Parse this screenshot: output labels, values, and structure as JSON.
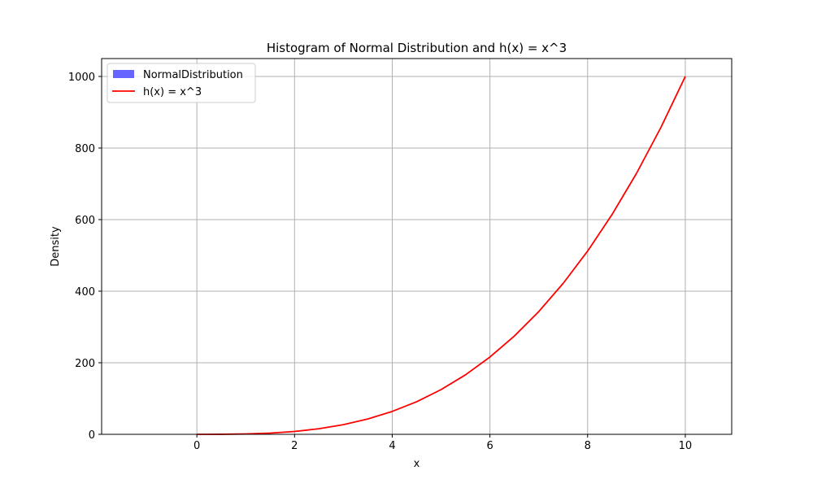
{
  "chart_data": {
    "type": "line",
    "title": "Histogram of Normal Distribution and h(x) = x^3",
    "xlabel": "x",
    "ylabel": "Density",
    "xlim": [
      -1.95,
      10.95
    ],
    "ylim": [
      0,
      1050
    ],
    "xticks": [
      0,
      2,
      4,
      6,
      8,
      10
    ],
    "yticks": [
      0,
      200,
      400,
      600,
      800,
      1000
    ],
    "grid": true,
    "legend_position": "upper-left",
    "series": [
      {
        "name": "NormalDistribution",
        "kind": "histogram",
        "color": "#6666ff",
        "values": []
      },
      {
        "name": "h(x) = x^3",
        "kind": "line",
        "color": "#ff0000",
        "x": [
          0,
          0.5,
          1,
          1.5,
          2,
          2.5,
          3,
          3.5,
          4,
          4.5,
          5,
          5.5,
          6,
          6.5,
          7,
          7.5,
          8,
          8.5,
          9,
          9.5,
          10
        ],
        "y": [
          0,
          0.125,
          1,
          3.375,
          8,
          15.625,
          27,
          42.875,
          64,
          91.125,
          125,
          166.375,
          216,
          274.625,
          343,
          421.875,
          512,
          614.125,
          729,
          857.375,
          1000
        ]
      }
    ]
  }
}
